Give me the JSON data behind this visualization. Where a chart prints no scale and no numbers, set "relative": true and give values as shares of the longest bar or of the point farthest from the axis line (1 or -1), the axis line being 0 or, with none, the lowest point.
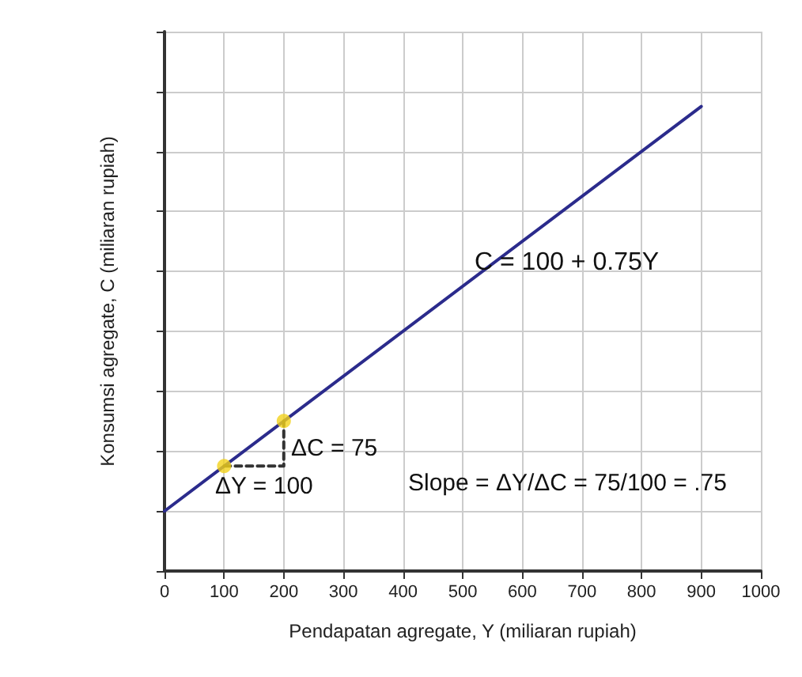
{
  "chart_data": {
    "type": "line",
    "xlabel": "Pendapatan agregate, Y (miliaran rupiah)",
    "ylabel": "Konsumsi agregate, C (miliaran rupiah)",
    "xlim": [
      0,
      1000
    ],
    "xticks": [
      0,
      100,
      200,
      300,
      400,
      500,
      600,
      700,
      800,
      900,
      1000
    ],
    "relative": true,
    "grid": true,
    "series": [
      {
        "type": "line",
        "color": "#2b2b8c",
        "x": [
          0,
          900
        ],
        "values": [
          0.129,
          1
        ],
        "marker": "none",
        "line_style": "solid"
      },
      {
        "type": "line",
        "color": "#333333",
        "x": [
          100,
          200,
          200
        ],
        "values": [
          0.226,
          0.226,
          0.323
        ],
        "marker": "none",
        "line_style": "dashed"
      },
      {
        "type": "scatter",
        "color": "#f2d21b",
        "x": [
          100,
          200
        ],
        "values": [
          0.226,
          0.323
        ],
        "marker": "circle"
      }
    ],
    "annotations": [
      "C = 100 + 0.75Y",
      "ΔC = 75",
      "ΔY = 100",
      "Slope = ΔY/ΔC = 75/100 = .75"
    ]
  }
}
